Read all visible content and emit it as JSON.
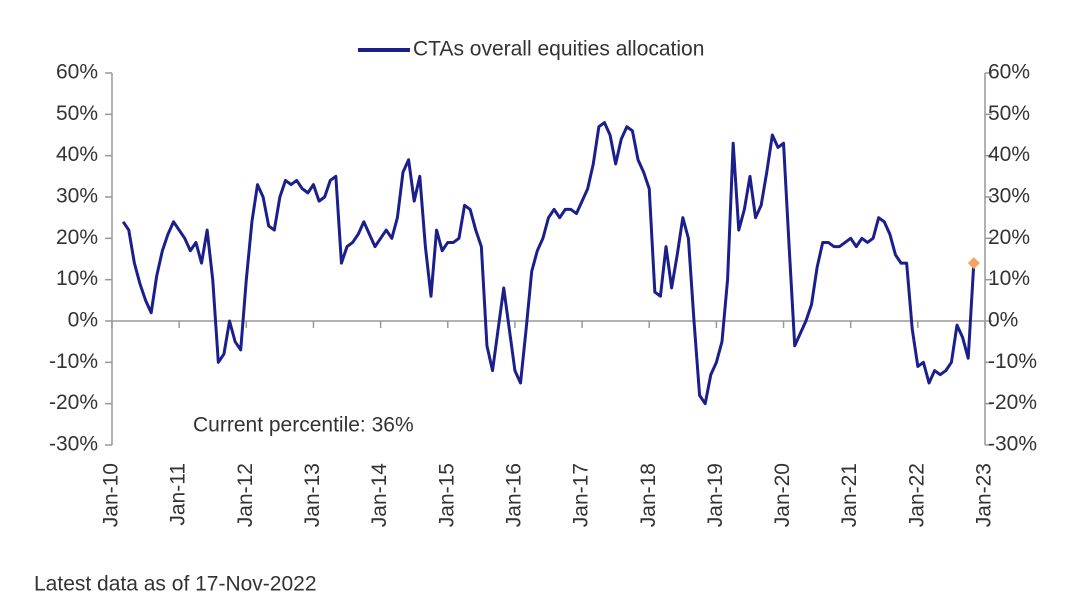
{
  "chart_data": {
    "type": "line",
    "annotation": "Current percentile: 36%",
    "footnote": "Latest data as of 17-Nov-2022",
    "xlim": [
      "2010-01",
      "2023-01"
    ],
    "xticks": [
      {
        "value": "2010-01",
        "label": "Jan-10"
      },
      {
        "value": "2011-01",
        "label": "Jan-11"
      },
      {
        "value": "2012-01",
        "label": "Jan-12"
      },
      {
        "value": "2013-01",
        "label": "Jan-13"
      },
      {
        "value": "2014-01",
        "label": "Jan-14"
      },
      {
        "value": "2015-01",
        "label": "Jan-15"
      },
      {
        "value": "2016-01",
        "label": "Jan-16"
      },
      {
        "value": "2017-01",
        "label": "Jan-17"
      },
      {
        "value": "2018-01",
        "label": "Jan-18"
      },
      {
        "value": "2019-01",
        "label": "Jan-19"
      },
      {
        "value": "2020-01",
        "label": "Jan-20"
      },
      {
        "value": "2021-01",
        "label": "Jan-21"
      },
      {
        "value": "2022-01",
        "label": "Jan-22"
      },
      {
        "value": "2023-01",
        "label": "Jan-23"
      }
    ],
    "ylim": [
      -30,
      60
    ],
    "yticks": [
      {
        "value": 60,
        "label": "60%"
      },
      {
        "value": 50,
        "label": "50%"
      },
      {
        "value": 40,
        "label": "40%"
      },
      {
        "value": 30,
        "label": "30%"
      },
      {
        "value": 20,
        "label": "20%"
      },
      {
        "value": 10,
        "label": "10%"
      },
      {
        "value": 0,
        "label": "0%"
      },
      {
        "value": -10,
        "label": "-10%"
      },
      {
        "value": -20,
        "label": "-20%"
      },
      {
        "value": -30,
        "label": "-30%"
      }
    ],
    "y2lim": [
      -30,
      60
    ],
    "y2ticks": [
      {
        "value": 60,
        "label": "60%"
      },
      {
        "value": 50,
        "label": "50%"
      },
      {
        "value": 40,
        "label": "40%"
      },
      {
        "value": 30,
        "label": "30%"
      },
      {
        "value": 20,
        "label": "20%"
      },
      {
        "value": 10,
        "label": "10%"
      },
      {
        "value": 0,
        "label": "0%"
      },
      {
        "value": -10,
        "label": "-10%"
      },
      {
        "value": -20,
        "label": "-20%"
      },
      {
        "value": -30,
        "label": "-30%"
      }
    ],
    "legend": "top",
    "last_point_marker_color": "#f4a460",
    "x": [
      "2010-03",
      "2010-04",
      "2010-05",
      "2010-06",
      "2010-07",
      "2010-08",
      "2010-09",
      "2010-10",
      "2010-11",
      "2010-12",
      "2011-01",
      "2011-02",
      "2011-03",
      "2011-04",
      "2011-05",
      "2011-06",
      "2011-07",
      "2011-08",
      "2011-09",
      "2011-10",
      "2011-11",
      "2011-12",
      "2012-01",
      "2012-02",
      "2012-03",
      "2012-04",
      "2012-05",
      "2012-06",
      "2012-07",
      "2012-08",
      "2012-09",
      "2012-10",
      "2012-11",
      "2012-12",
      "2013-01",
      "2013-02",
      "2013-03",
      "2013-04",
      "2013-05",
      "2013-06",
      "2013-07",
      "2013-08",
      "2013-09",
      "2013-10",
      "2013-11",
      "2013-12",
      "2014-01",
      "2014-02",
      "2014-03",
      "2014-04",
      "2014-05",
      "2014-06",
      "2014-07",
      "2014-08",
      "2014-09",
      "2014-10",
      "2014-11",
      "2014-12",
      "2015-01",
      "2015-02",
      "2015-03",
      "2015-04",
      "2015-05",
      "2015-06",
      "2015-07",
      "2015-08",
      "2015-09",
      "2015-10",
      "2015-11",
      "2015-12",
      "2016-01",
      "2016-02",
      "2016-03",
      "2016-04",
      "2016-05",
      "2016-06",
      "2016-07",
      "2016-08",
      "2016-09",
      "2016-10",
      "2016-11",
      "2016-12",
      "2017-01",
      "2017-02",
      "2017-03",
      "2017-04",
      "2017-05",
      "2017-06",
      "2017-07",
      "2017-08",
      "2017-09",
      "2017-10",
      "2017-11",
      "2017-12",
      "2018-01",
      "2018-02",
      "2018-03",
      "2018-04",
      "2018-05",
      "2018-06",
      "2018-07",
      "2018-08",
      "2018-09",
      "2018-10",
      "2018-11",
      "2018-12",
      "2019-01",
      "2019-02",
      "2019-03",
      "2019-04",
      "2019-05",
      "2019-06",
      "2019-07",
      "2019-08",
      "2019-09",
      "2019-10",
      "2019-11",
      "2019-12",
      "2020-01",
      "2020-02",
      "2020-03",
      "2020-04",
      "2020-05",
      "2020-06",
      "2020-07",
      "2020-08",
      "2020-09",
      "2020-10",
      "2020-11",
      "2020-12",
      "2021-01",
      "2021-02",
      "2021-03",
      "2021-04",
      "2021-05",
      "2021-06",
      "2021-07",
      "2021-08",
      "2021-09",
      "2021-10",
      "2021-11",
      "2021-12",
      "2022-01",
      "2022-02",
      "2022-03",
      "2022-04",
      "2022-05",
      "2022-06",
      "2022-07",
      "2022-08",
      "2022-09",
      "2022-10",
      "2022-11"
    ],
    "series": [
      {
        "name": "CTAs overall equities allocation",
        "color": "#1a1f8c",
        "values": [
          24,
          22,
          14,
          9,
          5,
          2,
          11,
          17,
          21,
          24,
          22,
          20,
          17,
          19,
          14,
          22,
          10,
          -10,
          -8,
          0,
          -5,
          -7,
          10,
          24,
          33,
          30,
          23,
          22,
          30,
          34,
          33,
          34,
          32,
          31,
          33,
          29,
          30,
          34,
          35,
          14,
          18,
          19,
          21,
          24,
          21,
          18,
          20,
          22,
          20,
          25,
          36,
          39,
          29,
          35,
          18,
          6,
          22,
          17,
          19,
          19,
          20,
          28,
          27,
          22,
          18,
          -6,
          -12,
          -2,
          8,
          -2,
          -12,
          -15,
          -2,
          12,
          17,
          20,
          25,
          27,
          25,
          27,
          27,
          26,
          29,
          32,
          38,
          47,
          48,
          45,
          38,
          44,
          47,
          46,
          39,
          36,
          32,
          7,
          6,
          18,
          8,
          16,
          25,
          20,
          0,
          -18,
          -20,
          -13,
          -10,
          -5,
          10,
          43,
          22,
          27,
          35,
          25,
          28,
          36,
          45,
          42,
          43,
          18,
          -6,
          -3,
          0,
          4,
          13,
          19,
          19,
          18,
          18,
          19,
          20,
          18,
          20,
          19,
          20,
          25,
          24,
          21,
          16,
          14,
          14,
          -2,
          -11,
          -10,
          -15,
          -12,
          -13,
          -12,
          -10,
          -1,
          -4,
          -9,
          14
        ]
      }
    ]
  }
}
